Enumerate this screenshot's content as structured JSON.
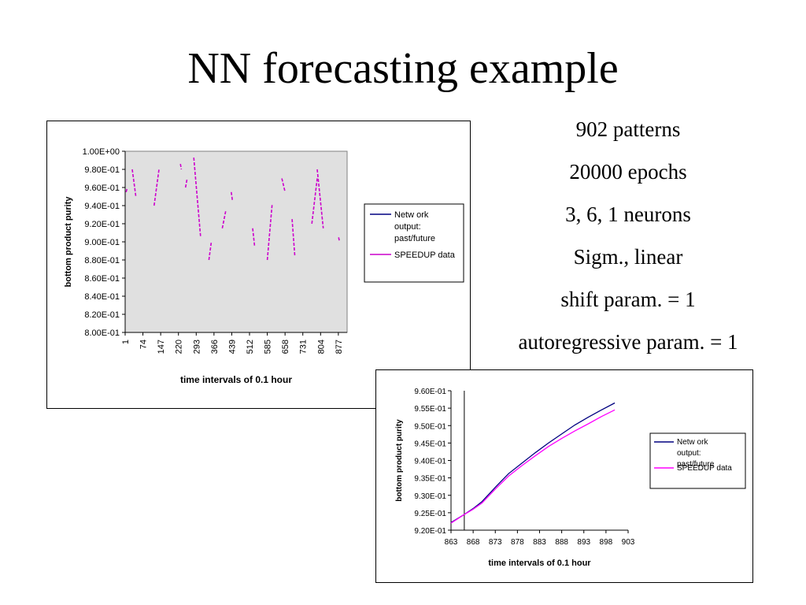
{
  "slide": {
    "title": "NN forecasting example",
    "params": [
      "902 patterns",
      "20000 epochs",
      "3, 6, 1 neurons",
      "Sigm., linear",
      "shift param. = 1",
      "autoregressive param. = 1"
    ]
  },
  "chart_data": [
    {
      "type": "line",
      "xlabel": "time intervals of 0.1 hour",
      "ylabel": "bottom product purity",
      "x_ticks": [
        "1",
        "74",
        "147",
        "220",
        "293",
        "366",
        "439",
        "512",
        "585",
        "658",
        "731",
        "804",
        "877"
      ],
      "y_ticks": [
        "1.00E+00",
        "9.80E-01",
        "9.60E-01",
        "9.40E-01",
        "9.20E-01",
        "9.00E-01",
        "8.80E-01",
        "8.60E-01",
        "8.40E-01",
        "8.20E-01",
        "8.00E-01"
      ],
      "xlim": [
        1,
        913
      ],
      "ylim": [
        0.8,
        1.0
      ],
      "plot_background": "#e0e0e0",
      "grid": false,
      "legend_position": "right",
      "series": [
        {
          "name": "Netw ork output: past/future",
          "color": "#000080",
          "x": [],
          "y": []
        },
        {
          "name": "SPEEDUP data",
          "color": "#cc00cc",
          "style": "dashed",
          "segments": [
            {
              "x": [
                5,
                10
              ],
              "y": [
                0.955,
                0.96
              ]
            },
            {
              "x": [
                30,
                45
              ],
              "y": [
                0.98,
                0.95
              ]
            },
            {
              "x": [
                120,
                140
              ],
              "y": [
                0.94,
                0.98
              ]
            },
            {
              "x": [
                228,
                232
              ],
              "y": [
                0.986,
                0.98
              ]
            },
            {
              "x": [
                249,
                256
              ],
              "y": [
                0.96,
                0.97
              ]
            },
            {
              "x": [
                283,
                311
              ],
              "y": [
                0.993,
                0.905
              ]
            },
            {
              "x": [
                345,
                355
              ],
              "y": [
                0.88,
                0.9
              ]
            },
            {
              "x": [
                400,
                415
              ],
              "y": [
                0.915,
                0.935
              ]
            },
            {
              "x": [
                437,
                442
              ],
              "y": [
                0.955,
                0.945
              ]
            },
            {
              "x": [
                525,
                533
              ],
              "y": [
                0.915,
                0.895
              ]
            },
            {
              "x": [
                585,
                605
              ],
              "y": [
                0.88,
                0.942
              ]
            },
            {
              "x": [
                645,
                658
              ],
              "y": [
                0.97,
                0.955
              ]
            },
            {
              "x": [
                687,
                698
              ],
              "y": [
                0.925,
                0.885
              ]
            },
            {
              "x": [
                768,
                790
              ],
              "y": [
                0.92,
                0.97
              ]
            },
            {
              "x": [
                790,
                815
              ],
              "y": [
                0.98,
                0.915
              ]
            },
            {
              "x": [
                878,
                882
              ],
              "y": [
                0.905,
                0.9
              ]
            }
          ]
        }
      ]
    },
    {
      "type": "line",
      "xlabel": "time intervals of 0.1 hour",
      "ylabel": "bottom product purity",
      "x_ticks": [
        "863",
        "868",
        "873",
        "878",
        "883",
        "888",
        "893",
        "898",
        "903"
      ],
      "y_ticks": [
        "9.60E-01",
        "9.55E-01",
        "9.50E-01",
        "9.45E-01",
        "9.40E-01",
        "9.35E-01",
        "9.30E-01",
        "9.25E-01",
        "9.20E-01"
      ],
      "xlim": [
        863,
        903
      ],
      "ylim": [
        0.92,
        0.96
      ],
      "grid": false,
      "legend_position": "right",
      "vertical_marker_x": 866,
      "series": [
        {
          "name": "Netw ork output: past/future",
          "color": "#000080",
          "x": [
            863,
            866,
            868,
            870,
            873,
            876,
            879,
            882,
            885,
            888,
            891,
            894,
            897,
            900
          ],
          "y": [
            0.9222,
            0.9245,
            0.9262,
            0.9282,
            0.9323,
            0.9362,
            0.9392,
            0.9422,
            0.945,
            0.9476,
            0.9502,
            0.9524,
            0.9545,
            0.9565
          ]
        },
        {
          "name": "SPEEDUP data",
          "color": "#ff00ff",
          "x": [
            863,
            866,
            868,
            870,
            873,
            876,
            879,
            882,
            885,
            888,
            891,
            894,
            897,
            900
          ],
          "y": [
            0.922,
            0.9245,
            0.926,
            0.9278,
            0.9318,
            0.9355,
            0.9385,
            0.9413,
            0.944,
            0.9463,
            0.9485,
            0.9505,
            0.9526,
            0.9545
          ]
        }
      ]
    }
  ]
}
